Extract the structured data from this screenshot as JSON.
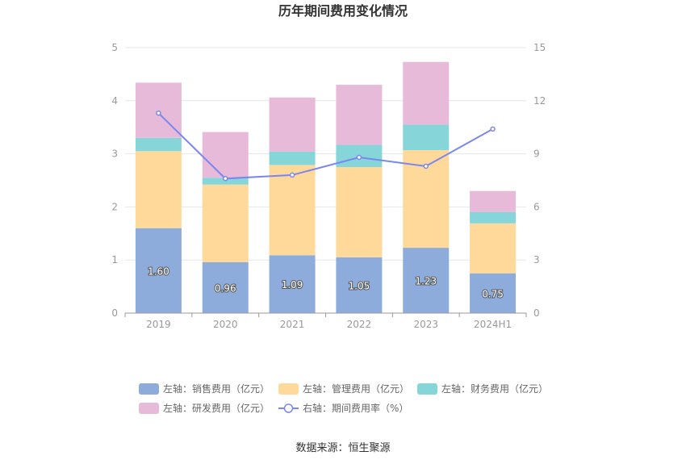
{
  "chart_data": {
    "type": "bar",
    "title": "历年期间费用变化情况",
    "categories": [
      "2019",
      "2020",
      "2021",
      "2022",
      "2023",
      "2024H1"
    ],
    "stacked": true,
    "left_axis": {
      "ylim": [
        0,
        5
      ],
      "ticks": [
        "0",
        "1",
        "2",
        "3",
        "4",
        "5"
      ]
    },
    "right_axis": {
      "ylim": [
        0,
        15
      ],
      "ticks": [
        "0",
        "3",
        "6",
        "9",
        "12",
        "15"
      ]
    },
    "series": [
      {
        "name": "左轴：销售费用（亿元）",
        "axis": "left",
        "color": "#8eacdb",
        "values": [
          1.6,
          0.96,
          1.09,
          1.05,
          1.23,
          0.75
        ],
        "labels": [
          "1.60",
          "0.96",
          "1.09",
          "1.05",
          "1.23",
          "0.75"
        ]
      },
      {
        "name": "左轴：管理费用（亿元）",
        "axis": "left",
        "color": "#ffd99a",
        "values": [
          1.45,
          1.46,
          1.7,
          1.7,
          1.84,
          0.94
        ]
      },
      {
        "name": "左轴：财务费用（亿元）",
        "axis": "left",
        "color": "#86d6d9",
        "values": [
          0.25,
          0.13,
          0.25,
          0.42,
          0.48,
          0.21
        ]
      },
      {
        "name": "左轴：研发费用（亿元）",
        "axis": "left",
        "color": "#e7bad9",
        "values": [
          1.04,
          0.86,
          1.02,
          1.13,
          1.18,
          0.4
        ]
      },
      {
        "name": "右轴：期间费用率（%）",
        "axis": "right",
        "type": "line",
        "color": "#7b86ee",
        "values": [
          11.3,
          7.6,
          7.8,
          8.8,
          8.3,
          10.4
        ]
      }
    ],
    "legend_position": "bottom",
    "grid": true
  },
  "footer": {
    "source": "数据来源：恒生聚源"
  }
}
